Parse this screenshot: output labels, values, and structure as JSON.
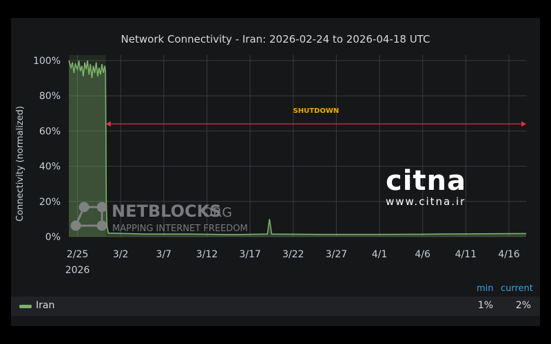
{
  "chart_data": {
    "type": "line",
    "title": "Network Connectivity - Iran: 2026-02-24 to 2026-04-18 UTC",
    "ylabel": "Connectivity (normalized)",
    "xlabel": "",
    "ylim": [
      0,
      100
    ],
    "xlim": [
      "2026-02-24",
      "2026-04-18"
    ],
    "y_ticks": [
      "0%",
      "20%",
      "40%",
      "60%",
      "80%",
      "100%"
    ],
    "x_ticks": [
      {
        "date": "2026-02-25",
        "label": "2/25",
        "sublabel": "2026"
      },
      {
        "date": "2026-03-02",
        "label": "3/2"
      },
      {
        "date": "2026-03-07",
        "label": "3/7"
      },
      {
        "date": "2026-03-12",
        "label": "3/12"
      },
      {
        "date": "2026-03-17",
        "label": "3/17"
      },
      {
        "date": "2026-03-22",
        "label": "3/22"
      },
      {
        "date": "2026-03-27",
        "label": "3/27"
      },
      {
        "date": "2026-04-01",
        "label": "4/1"
      },
      {
        "date": "2026-04-06",
        "label": "4/6"
      },
      {
        "date": "2026-04-11",
        "label": "4/11"
      },
      {
        "date": "2026-04-16",
        "label": "4/16"
      }
    ],
    "grid": true,
    "series": [
      {
        "name": "Iran",
        "color": "#7eb26d",
        "points": [
          [
            "2026-02-24 00:00",
            100
          ],
          [
            "2026-02-24 06:00",
            96
          ],
          [
            "2026-02-24 10:00",
            99
          ],
          [
            "2026-02-24 14:00",
            93
          ],
          [
            "2026-02-24 18:00",
            98
          ],
          [
            "2026-02-25 00:00",
            95
          ],
          [
            "2026-02-25 04:00",
            100
          ],
          [
            "2026-02-25 08:00",
            94
          ],
          [
            "2026-02-25 12:00",
            97
          ],
          [
            "2026-02-25 16:00",
            91
          ],
          [
            "2026-02-25 20:00",
            99
          ],
          [
            "2026-02-26 00:00",
            95
          ],
          [
            "2026-02-26 04:00",
            100
          ],
          [
            "2026-02-26 08:00",
            92
          ],
          [
            "2026-02-26 12:00",
            98
          ],
          [
            "2026-02-26 16:00",
            90
          ],
          [
            "2026-02-26 20:00",
            97
          ],
          [
            "2026-02-27 00:00",
            93
          ],
          [
            "2026-02-27 04:00",
            99
          ],
          [
            "2026-02-27 08:00",
            91
          ],
          [
            "2026-02-27 12:00",
            96
          ],
          [
            "2026-02-27 16:00",
            92
          ],
          [
            "2026-02-27 20:00",
            98
          ],
          [
            "2026-02-28 00:00",
            93
          ],
          [
            "2026-02-28 04:00",
            97
          ],
          [
            "2026-02-28 06:00",
            94
          ],
          [
            "2026-02-28 07:00",
            60
          ],
          [
            "2026-02-28 08:00",
            20
          ],
          [
            "2026-02-28 10:00",
            6
          ],
          [
            "2026-02-28 14:00",
            2
          ],
          [
            "2026-03-01 00:00",
            2
          ],
          [
            "2026-03-05 00:00",
            1.5
          ],
          [
            "2026-03-10 00:00",
            1.5
          ],
          [
            "2026-03-15 00:00",
            1.2
          ],
          [
            "2026-03-19 00:00",
            1.5
          ],
          [
            "2026-03-19 06:00",
            10
          ],
          [
            "2026-03-19 12:00",
            1.5
          ],
          [
            "2026-03-25 00:00",
            1.3
          ],
          [
            "2026-04-01 00:00",
            1.3
          ],
          [
            "2026-04-06 00:00",
            1.4
          ],
          [
            "2026-04-11 00:00",
            1.6
          ],
          [
            "2026-04-18 00:00",
            1.8
          ]
        ]
      }
    ],
    "highlight_region": {
      "from": "2026-02-24",
      "to": "2026-02-28 07:00"
    },
    "annotation": {
      "text": "SHUTDOWN",
      "from": "2026-02-28 07:00",
      "to": "2026-04-18 00:00",
      "y": 64,
      "color": "#e02f44"
    }
  },
  "watermarks": {
    "netblocks": {
      "brand": "NETBLOCKS",
      "org": ".ORG",
      "tagline": "MAPPING INTERNET FREEDOM"
    },
    "citna": {
      "logo": "citna",
      "url": "www.citna.ir"
    }
  },
  "legend": {
    "header_min": "min",
    "header_current": "current",
    "rows": [
      {
        "name": "Iran",
        "color": "#7eb26d",
        "min": "1%",
        "current": "2%"
      }
    ]
  }
}
